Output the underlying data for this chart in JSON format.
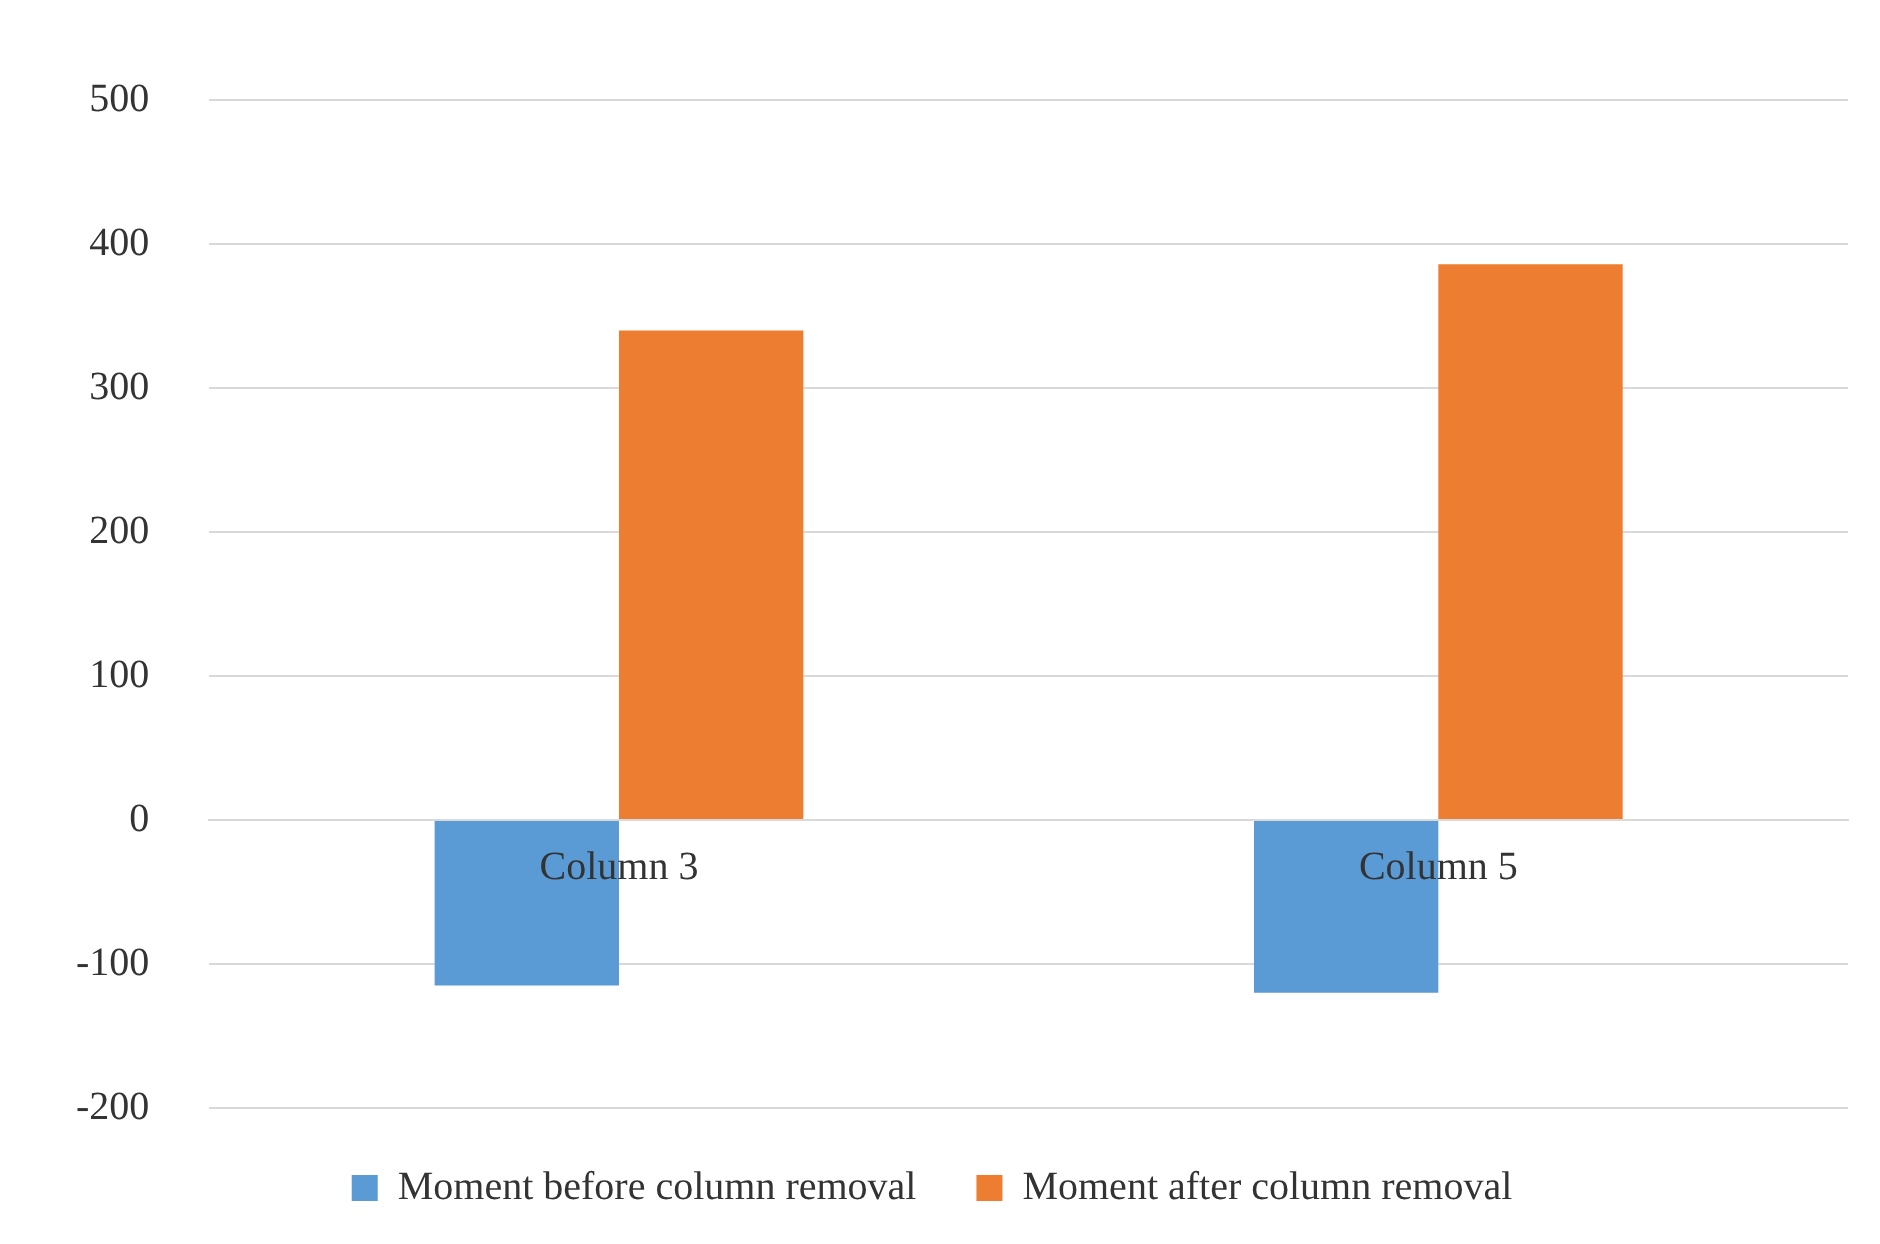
{
  "chart_data": {
    "type": "bar",
    "categories": [
      "Column 3",
      "Column 5"
    ],
    "series": [
      {
        "name": "Moment before column removal",
        "color": "#5b9bd5",
        "values": [
          -115,
          -120
        ]
      },
      {
        "name": "Moment after column removal",
        "color": "#ed7d31",
        "values": [
          340,
          386
        ]
      }
    ],
    "ylim": [
      -200,
      500
    ],
    "yticks": [
      -200,
      -100,
      0,
      100,
      200,
      300,
      400,
      500
    ],
    "grid": "y",
    "legend": "bottom"
  }
}
